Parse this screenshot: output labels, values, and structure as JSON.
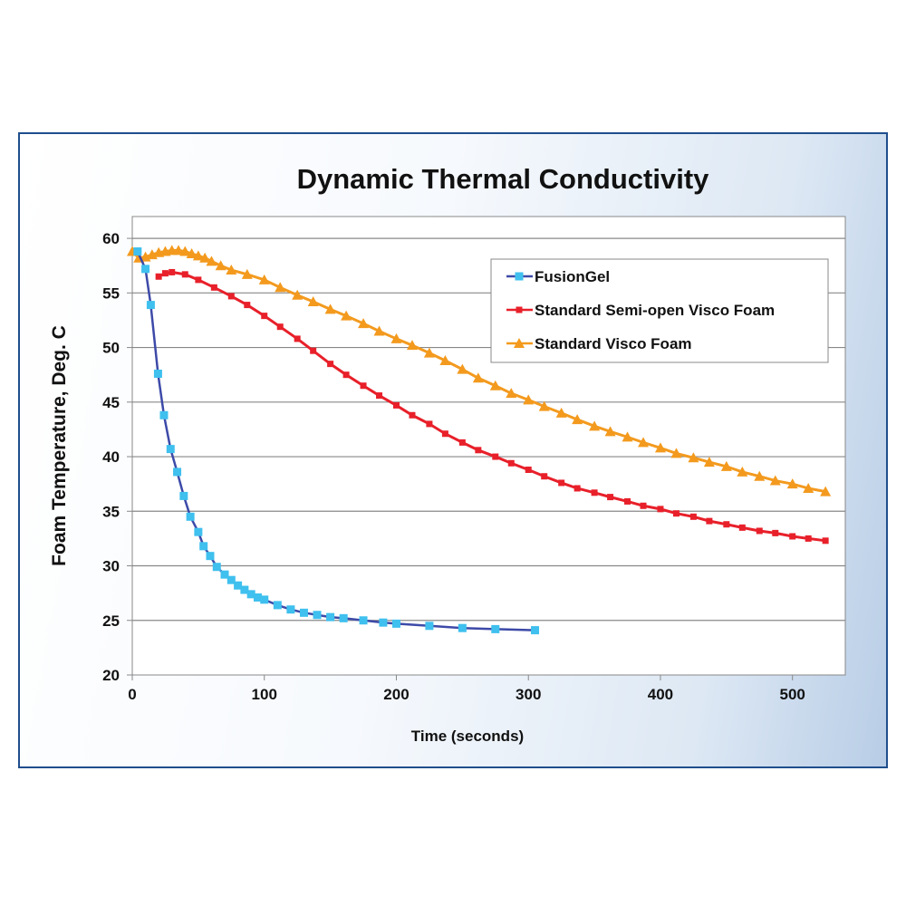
{
  "chart_data": {
    "type": "line",
    "title": "Dynamic Thermal Conductivity",
    "xlabel": "Time (seconds)",
    "ylabel": "Foam Temperature, Deg. C",
    "xlim": [
      0,
      540
    ],
    "ylim": [
      20,
      62
    ],
    "xticks": [
      0,
      100,
      200,
      300,
      400,
      500
    ],
    "yticks": [
      20,
      25,
      30,
      35,
      40,
      45,
      50,
      55,
      60
    ],
    "grid": "horizontal",
    "legend_position": "top-right",
    "series": [
      {
        "name": "FusionGel",
        "color": "#3fc0ee",
        "line_color": "#3d4aa8",
        "marker": "square",
        "x": [
          4,
          10,
          14,
          19.5,
          24,
          29,
          34,
          39,
          44,
          50,
          54,
          59,
          64,
          70,
          75,
          80,
          85,
          90,
          95,
          100,
          110,
          120,
          130,
          140,
          150,
          160,
          175,
          190,
          200,
          225,
          250,
          275,
          305
        ],
        "y": [
          58.8,
          57.2,
          53.9,
          47.6,
          43.8,
          40.7,
          38.6,
          36.4,
          34.5,
          33.1,
          31.8,
          30.9,
          29.9,
          29.2,
          28.7,
          28.2,
          27.8,
          27.4,
          27.1,
          26.9,
          26.4,
          26.0,
          25.7,
          25.5,
          25.3,
          25.2,
          25.0,
          24.8,
          24.7,
          24.5,
          24.3,
          24.2,
          24.1
        ]
      },
      {
        "name": "Standard Semi-open Visco Foam",
        "color": "#e8202a",
        "marker": "square",
        "x": [
          20,
          25,
          30,
          40,
          50,
          62,
          75,
          87,
          100,
          112,
          125,
          137,
          150,
          162,
          175,
          187,
          200,
          212,
          225,
          237,
          250,
          262,
          275,
          287,
          300,
          312,
          325,
          337,
          350,
          362,
          375,
          387,
          400,
          412,
          425,
          437,
          450,
          462,
          475,
          487,
          500,
          512,
          525
        ],
        "y": [
          56.5,
          56.8,
          56.9,
          56.7,
          56.2,
          55.5,
          54.7,
          53.9,
          52.9,
          51.9,
          50.8,
          49.7,
          48.5,
          47.5,
          46.5,
          45.6,
          44.7,
          43.8,
          43.0,
          42.1,
          41.3,
          40.6,
          40.0,
          39.4,
          38.8,
          38.2,
          37.6,
          37.1,
          36.7,
          36.3,
          35.9,
          35.5,
          35.2,
          34.8,
          34.5,
          34.1,
          33.8,
          33.5,
          33.2,
          33.0,
          32.7,
          32.5,
          32.3
        ]
      },
      {
        "name": "Standard Visco Foam",
        "color": "#f39a1e",
        "marker": "triangle",
        "x": [
          0,
          5,
          10,
          15,
          20,
          25,
          30,
          35,
          40,
          45,
          50,
          55,
          60,
          67,
          75,
          87,
          100,
          112,
          125,
          137,
          150,
          162,
          175,
          187,
          200,
          212,
          225,
          237,
          250,
          262,
          275,
          287,
          300,
          312,
          325,
          337,
          350,
          362,
          375,
          387,
          400,
          412,
          425,
          437,
          450,
          462,
          475,
          487,
          500,
          512,
          525
        ],
        "y": [
          58.8,
          58.2,
          58.3,
          58.5,
          58.7,
          58.8,
          58.9,
          58.9,
          58.8,
          58.6,
          58.4,
          58.2,
          57.9,
          57.5,
          57.1,
          56.7,
          56.2,
          55.5,
          54.8,
          54.2,
          53.5,
          52.9,
          52.2,
          51.5,
          50.8,
          50.2,
          49.5,
          48.8,
          48.0,
          47.2,
          46.5,
          45.8,
          45.2,
          44.6,
          44.0,
          43.4,
          42.8,
          42.3,
          41.8,
          41.3,
          40.8,
          40.3,
          39.9,
          39.5,
          39.1,
          38.6,
          38.2,
          37.8,
          37.5,
          37.1,
          36.8
        ]
      }
    ]
  }
}
